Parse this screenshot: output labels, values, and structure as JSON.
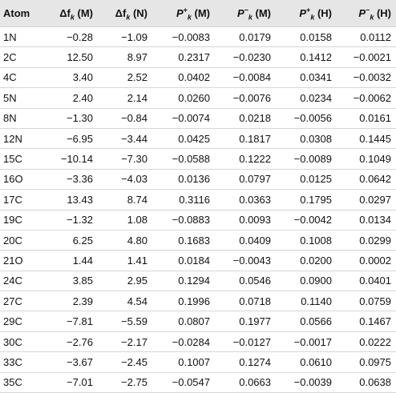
{
  "table": {
    "headers": [
      {
        "id": "atom",
        "main": "Atom",
        "sym": "",
        "sup": "",
        "sub": "",
        "unit": ""
      },
      {
        "id": "dfM",
        "main": "Δf",
        "sym": "",
        "sup": "",
        "sub": "k",
        "unit": " (M)"
      },
      {
        "id": "dfN",
        "main": "Δf",
        "sym": "",
        "sup": "",
        "sub": "k",
        "unit": " (N)"
      },
      {
        "id": "PpM",
        "main": "",
        "sym": "P",
        "sup": "+",
        "sub": "k",
        "unit": " (M)"
      },
      {
        "id": "PmM",
        "main": "",
        "sym": "P",
        "sup": "−",
        "sub": "k",
        "unit": " (M)"
      },
      {
        "id": "PpH",
        "main": "",
        "sym": "P",
        "sup": "+",
        "sub": "k",
        "unit": " (H)"
      },
      {
        "id": "PmH",
        "main": "",
        "sym": "P",
        "sup": "−",
        "sub": "k",
        "unit": " (H)"
      }
    ],
    "rows": [
      [
        "1N",
        "−0.28",
        "−1.09",
        "−0.0083",
        "0.0179",
        "0.0158",
        "0.0112"
      ],
      [
        "2C",
        "12.50",
        "8.97",
        "0.2317",
        "−0.0230",
        "0.1412",
        "−0.0021"
      ],
      [
        "4C",
        "3.40",
        "2.52",
        "0.0402",
        "−0.0084",
        "0.0341",
        "−0.0032"
      ],
      [
        "5N",
        "2.40",
        "2.14",
        "0.0260",
        "−0.0076",
        "0.0234",
        "−0.0062"
      ],
      [
        "8N",
        "−1.30",
        "−0.84",
        "−0.0074",
        "0.0218",
        "−0.0056",
        "0.0161"
      ],
      [
        "12N",
        "−6.95",
        "−3.44",
        "0.0425",
        "0.1817",
        "0.0308",
        "0.1445"
      ],
      [
        "15C",
        "−10.14",
        "−7.30",
        "−0.0588",
        "0.1222",
        "−0.0089",
        "0.1049"
      ],
      [
        "16O",
        "−3.36",
        "−4.03",
        "0.0136",
        "0.0797",
        "0.0125",
        "0.0642"
      ],
      [
        "17C",
        "13.43",
        "8.74",
        "0.3116",
        "0.0363",
        "0.1795",
        "0.0297"
      ],
      [
        "19C",
        "−1.32",
        "1.08",
        "−0.0883",
        "0.0093",
        "−0.0042",
        "0.0134"
      ],
      [
        "20C",
        "6.25",
        "4.80",
        "0.1683",
        "0.0409",
        "0.1008",
        "0.0299"
      ],
      [
        "21O",
        "1.44",
        "1.41",
        "0.0184",
        "−0.0043",
        "0.0200",
        "0.0002"
      ],
      [
        "24C",
        "3.85",
        "2.95",
        "0.1294",
        "0.0546",
        "0.0900",
        "0.0401"
      ],
      [
        "27C",
        "2.39",
        "4.54",
        "0.1996",
        "0.0718",
        "0.1140",
        "0.0759"
      ],
      [
        "29C",
        "−7.81",
        "−5.59",
        "0.0807",
        "0.1977",
        "0.0566",
        "0.1467"
      ],
      [
        "30C",
        "−2.76",
        "−2.17",
        "−0.0284",
        "−0.0127",
        "−0.0017",
        "0.0222"
      ],
      [
        "33C",
        "−3.67",
        "−2.45",
        "0.1007",
        "0.1274",
        "0.0610",
        "0.0975"
      ],
      [
        "35C",
        "−7.01",
        "−2.75",
        "−0.0547",
        "0.0663",
        "−0.0039",
        "0.0638"
      ]
    ]
  }
}
